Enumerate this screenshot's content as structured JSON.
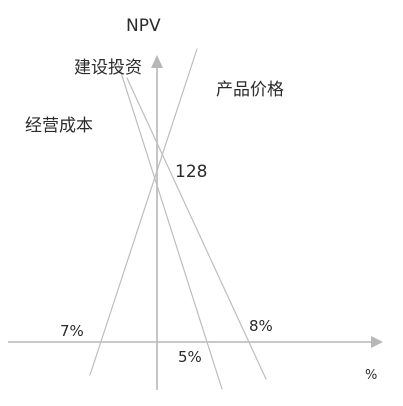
{
  "chart_data": {
    "type": "line",
    "title": "",
    "xlabel": "%",
    "ylabel": "NPV",
    "center_value": "128",
    "series": [
      {
        "name": "经营成本",
        "x_label": "7%"
      },
      {
        "name": "建设投资",
        "x_label": "5%"
      },
      {
        "name": "产品价格",
        "x_label": "8%"
      }
    ],
    "colors": {
      "axes": "#b7b7b7",
      "lines": "#bdbdbd",
      "text": "#2b2b2b"
    }
  }
}
